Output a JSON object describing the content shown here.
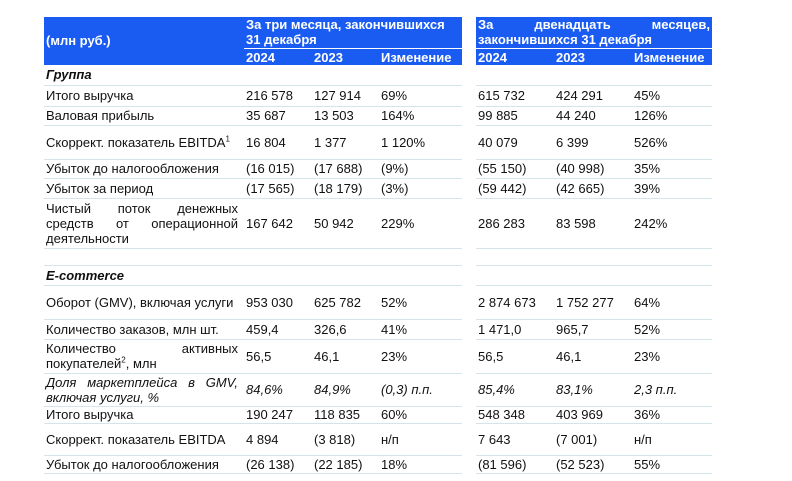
{
  "header": {
    "unit": "(млн руб.)",
    "period_q": "За три месяца, закончившихся 31 декабря",
    "period_y_line1": "За двенадцать месяцев,",
    "period_y_line2": "закончившихся 31 декабря",
    "col_2024": "2024",
    "col_2023": "2023",
    "col_change": "Изменение"
  },
  "rows": [
    {
      "type": "section",
      "label": "Группа",
      "h": 20
    },
    {
      "label": "Итого выручка",
      "v": [
        "216 578",
        "127 914",
        "69%",
        "615 732",
        "424 291",
        "45%"
      ],
      "h": 21
    },
    {
      "label": "Валовая прибыль",
      "v": [
        "35 687",
        "13 503",
        "164%",
        "99 885",
        "44 240",
        "126%"
      ],
      "h": 19
    },
    {
      "label": "Скоррект. показатель EBITDA",
      "sup": "1",
      "v": [
        "16 804",
        "1 377",
        "1 120%",
        "40 079",
        "6 399",
        "526%"
      ],
      "h": 34
    },
    {
      "label": "Убыток до налогообложения",
      "v": [
        "(16 015)",
        "(17 688)",
        "(9%)",
        "(55 150)",
        "(40 998)",
        "35%"
      ],
      "h": 19
    },
    {
      "label": "Убыток за период",
      "v": [
        "(17 565)",
        "(18 179)",
        "(3%)",
        "(59 442)",
        "(42 665)",
        "39%"
      ],
      "h": 20
    },
    {
      "label": "Чистый поток денежных средств от операционной деятельности",
      "v": [
        "167 642",
        "50 942",
        "229%",
        "286 283",
        "83 598",
        "242%"
      ],
      "h": 50
    },
    {
      "type": "blank",
      "h": 17
    },
    {
      "type": "section",
      "label": "E-commerce",
      "h": 20
    },
    {
      "label": "Оборот (GMV), включая услуги",
      "v": [
        "953 030",
        "625 782",
        "52%",
        "2 874 673",
        "1 752 277",
        "64%"
      ],
      "h": 34
    },
    {
      "label": "Количество заказов, млн шт.",
      "v": [
        "459,4",
        "326,6",
        "41%",
        "1 471,0",
        "965,7",
        "52%"
      ],
      "h": 20
    },
    {
      "label": "Количество активных покупателей",
      "sup": "2",
      "suffix": ", млн",
      "v": [
        "56,5",
        "46,1",
        "23%",
        "56,5",
        "46,1",
        "23%"
      ],
      "h": 34
    },
    {
      "label": "Доля маркетплейса в GMV, включая услуги, %",
      "italic": true,
      "v": [
        "84,6%",
        "84,9%",
        "(0,3) п.п.",
        "85,4%",
        "83,1%",
        "2,3 п.п."
      ],
      "h": 33
    },
    {
      "label": "Итого выручка",
      "v": [
        "190 247",
        "118 835",
        "60%",
        "548 348",
        "403 969",
        "36%"
      ],
      "h": 17
    },
    {
      "label": "Скоррект. показатель EBITDA",
      "v": [
        "4 894",
        "(3 818)",
        "н/п",
        "7 643",
        "(7 001)",
        "н/п"
      ],
      "h": 32
    },
    {
      "label": "Убыток до налогообложения",
      "v": [
        "(26 138)",
        "(22 185)",
        "18%",
        "(81 596)",
        "(52 523)",
        "55%"
      ],
      "h": 18
    }
  ]
}
